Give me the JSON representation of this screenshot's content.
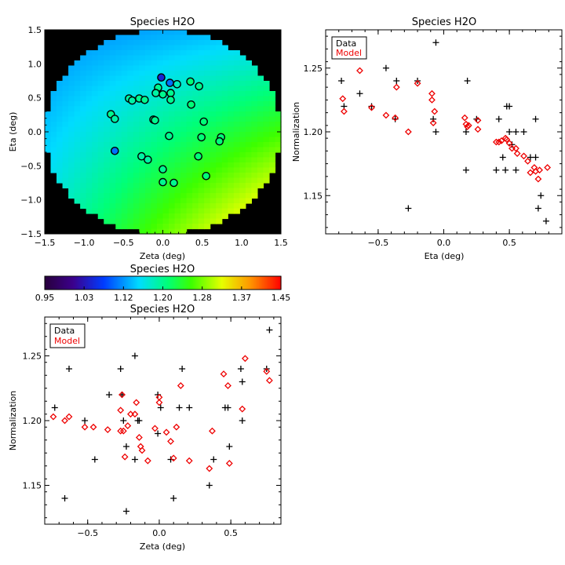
{
  "chart_data": [
    {
      "type": "heatmap",
      "title": "Species H2O",
      "xlabel": "Zeta (deg)",
      "ylabel": "Eta (deg)",
      "xlim": [
        -1.5,
        1.5
      ],
      "ylim": [
        -1.5,
        1.5
      ],
      "xticks": [
        "−1.5",
        "−1.0",
        "−0.5",
        "0.0",
        "0.5",
        "1.0",
        "1.5"
      ],
      "yticks": [
        "−1.5",
        "−1.0",
        "−0.5",
        "0.0",
        "0.5",
        "1.0",
        "1.5"
      ],
      "field": {
        "radius": 1.5,
        "center_value": 1.2,
        "dx_gradient": 0.04,
        "dy_gradient": 0.05
      },
      "points": [
        {
          "x": -0.02,
          "y": 0.8,
          "v": 1.05
        },
        {
          "x": 0.09,
          "y": 0.72,
          "v": 1.1
        },
        {
          "x": 0.18,
          "y": 0.7,
          "v": 1.18
        },
        {
          "x": 0.35,
          "y": 0.74,
          "v": 1.21
        },
        {
          "x": 0.46,
          "y": 0.67,
          "v": 1.2
        },
        {
          "x": -0.06,
          "y": 0.65,
          "v": 1.2
        },
        {
          "x": -0.09,
          "y": 0.57,
          "v": 1.19
        },
        {
          "x": 0.0,
          "y": 0.55,
          "v": 1.2
        },
        {
          "x": 0.1,
          "y": 0.57,
          "v": 1.2
        },
        {
          "x": -0.43,
          "y": 0.49,
          "v": 1.19
        },
        {
          "x": -0.39,
          "y": 0.46,
          "v": 1.19
        },
        {
          "x": -0.3,
          "y": 0.49,
          "v": 1.2
        },
        {
          "x": -0.23,
          "y": 0.47,
          "v": 1.2
        },
        {
          "x": 0.1,
          "y": 0.47,
          "v": 1.2
        },
        {
          "x": 0.36,
          "y": 0.4,
          "v": 1.21
        },
        {
          "x": -0.66,
          "y": 0.26,
          "v": 1.2
        },
        {
          "x": -0.61,
          "y": 0.19,
          "v": 1.19
        },
        {
          "x": -0.12,
          "y": 0.18,
          "v": 1.2
        },
        {
          "x": -0.1,
          "y": 0.17,
          "v": 1.2
        },
        {
          "x": 0.52,
          "y": 0.15,
          "v": 1.21
        },
        {
          "x": 0.08,
          "y": -0.06,
          "v": 1.2
        },
        {
          "x": 0.49,
          "y": -0.08,
          "v": 1.21
        },
        {
          "x": 0.74,
          "y": -0.08,
          "v": 1.21
        },
        {
          "x": 0.72,
          "y": -0.14,
          "v": 1.21
        },
        {
          "x": -0.61,
          "y": -0.28,
          "v": 1.1
        },
        {
          "x": -0.27,
          "y": -0.36,
          "v": 1.19
        },
        {
          "x": -0.19,
          "y": -0.41,
          "v": 1.19
        },
        {
          "x": 0.45,
          "y": -0.36,
          "v": 1.21
        },
        {
          "x": 0.0,
          "y": -0.55,
          "v": 1.2
        },
        {
          "x": 0.55,
          "y": -0.65,
          "v": 1.21
        },
        {
          "x": 0.0,
          "y": -0.74,
          "v": 1.2
        },
        {
          "x": 0.14,
          "y": -0.75,
          "v": 1.2
        }
      ]
    },
    {
      "type": "scatter",
      "title": "Species H2O",
      "xlabel": "Eta (deg)",
      "ylabel": "Normalization",
      "xlim": [
        -0.9,
        0.9
      ],
      "ylim": [
        1.12,
        1.28
      ],
      "xticks": [
        "−0.5",
        "0.0",
        "0.5"
      ],
      "yticks": [
        "1.15",
        "1.20",
        "1.25"
      ],
      "legend": {
        "location": "top-left",
        "entries": [
          "Data",
          "Model"
        ],
        "colors": [
          "#000000",
          "#ee0000"
        ]
      },
      "series": [
        {
          "name": "Data",
          "marker": "plus",
          "points": [
            [
              -0.78,
              1.24
            ],
            [
              -0.76,
              1.22
            ],
            [
              -0.64,
              1.23
            ],
            [
              -0.55,
              1.22
            ],
            [
              -0.44,
              1.25
            ],
            [
              -0.37,
              1.21
            ],
            [
              -0.36,
              1.24
            ],
            [
              -0.27,
              1.14
            ],
            [
              -0.2,
              1.24
            ],
            [
              -0.08,
              1.21
            ],
            [
              -0.06,
              1.2
            ],
            [
              -0.06,
              1.27
            ],
            [
              0.18,
              1.24
            ],
            [
              0.17,
              1.2
            ],
            [
              0.17,
              1.17
            ],
            [
              0.25,
              1.21
            ],
            [
              0.4,
              1.17
            ],
            [
              0.42,
              1.21
            ],
            [
              0.45,
              1.18
            ],
            [
              0.47,
              1.17
            ],
            [
              0.48,
              1.22
            ],
            [
              0.5,
              1.22
            ],
            [
              0.5,
              1.2
            ],
            [
              0.52,
              1.19
            ],
            [
              0.55,
              1.2
            ],
            [
              0.55,
              1.17
            ],
            [
              0.61,
              1.2
            ],
            [
              0.66,
              1.18
            ],
            [
              0.7,
              1.21
            ],
            [
              0.7,
              1.18
            ],
            [
              0.72,
              1.14
            ],
            [
              0.74,
              1.15
            ],
            [
              0.78,
              1.13
            ]
          ]
        },
        {
          "name": "Model",
          "marker": "diamond",
          "points": [
            [
              -0.77,
              1.226
            ],
            [
              -0.76,
              1.216
            ],
            [
              -0.64,
              1.248
            ],
            [
              -0.55,
              1.219
            ],
            [
              -0.44,
              1.213
            ],
            [
              -0.37,
              1.211
            ],
            [
              -0.36,
              1.235
            ],
            [
              -0.27,
              1.2
            ],
            [
              -0.2,
              1.238
            ],
            [
              -0.09,
              1.23
            ],
            [
              -0.09,
              1.225
            ],
            [
              -0.08,
              1.207
            ],
            [
              -0.07,
              1.216
            ],
            [
              0.16,
              1.211
            ],
            [
              0.17,
              1.206
            ],
            [
              0.18,
              1.204
            ],
            [
              0.19,
              1.205
            ],
            [
              0.26,
              1.202
            ],
            [
              0.26,
              1.209
            ],
            [
              0.4,
              1.192
            ],
            [
              0.42,
              1.192
            ],
            [
              0.44,
              1.193
            ],
            [
              0.47,
              1.195
            ],
            [
              0.48,
              1.194
            ],
            [
              0.5,
              1.191
            ],
            [
              0.52,
              1.187
            ],
            [
              0.55,
              1.187
            ],
            [
              0.56,
              1.183
            ],
            [
              0.61,
              1.181
            ],
            [
              0.64,
              1.177
            ],
            [
              0.66,
              1.168
            ],
            [
              0.69,
              1.172
            ],
            [
              0.7,
              1.169
            ],
            [
              0.72,
              1.163
            ],
            [
              0.73,
              1.17
            ],
            [
              0.79,
              1.172
            ]
          ]
        }
      ]
    },
    {
      "type": "colorbar",
      "title": "Species H2O",
      "range": [
        0.95,
        1.45
      ],
      "tick_labels": [
        "0.95",
        "1.03",
        "1.12",
        "1.20",
        "1.28",
        "1.37",
        "1.45"
      ],
      "colormap": "rainbow (purple-blue-cyan-green-yellow-red)"
    },
    {
      "type": "scatter",
      "title": "Species H2O",
      "xlabel": "Zeta (deg)",
      "ylabel": "Normalization",
      "xlim": [
        -0.8,
        0.85
      ],
      "ylim": [
        1.12,
        1.28
      ],
      "xticks": [
        "−0.5",
        "0.0",
        "0.5"
      ],
      "yticks": [
        "1.15",
        "1.20",
        "1.25"
      ],
      "legend": {
        "location": "top-left",
        "entries": [
          "Data",
          "Model"
        ],
        "colors": [
          "#000000",
          "#ee0000"
        ]
      },
      "series": [
        {
          "name": "Data",
          "marker": "plus",
          "points": [
            [
              -0.73,
              1.21
            ],
            [
              -0.66,
              1.14
            ],
            [
              -0.63,
              1.24
            ],
            [
              -0.52,
              1.2
            ],
            [
              -0.45,
              1.17
            ],
            [
              -0.35,
              1.22
            ],
            [
              -0.27,
              1.24
            ],
            [
              -0.26,
              1.22
            ],
            [
              -0.25,
              1.2
            ],
            [
              -0.23,
              1.13
            ],
            [
              -0.23,
              1.18
            ],
            [
              -0.17,
              1.25
            ],
            [
              -0.17,
              1.17
            ],
            [
              -0.15,
              1.2
            ],
            [
              -0.14,
              1.2
            ],
            [
              -0.01,
              1.22
            ],
            [
              -0.01,
              1.19
            ],
            [
              0.01,
              1.21
            ],
            [
              0.08,
              1.17
            ],
            [
              0.1,
              1.14
            ],
            [
              0.14,
              1.21
            ],
            [
              0.16,
              1.24
            ],
            [
              0.21,
              1.21
            ],
            [
              0.35,
              1.15
            ],
            [
              0.38,
              1.17
            ],
            [
              0.46,
              1.21
            ],
            [
              0.48,
              1.21
            ],
            [
              0.49,
              1.18
            ],
            [
              0.57,
              1.24
            ],
            [
              0.58,
              1.23
            ],
            [
              0.58,
              1.2
            ],
            [
              0.75,
              1.24
            ],
            [
              0.77,
              1.27
            ]
          ]
        },
        {
          "name": "Model",
          "marker": "diamond",
          "points": [
            [
              -0.74,
              1.203
            ],
            [
              -0.66,
              1.2
            ],
            [
              -0.63,
              1.203
            ],
            [
              -0.52,
              1.195
            ],
            [
              -0.46,
              1.195
            ],
            [
              -0.36,
              1.193
            ],
            [
              -0.27,
              1.192
            ],
            [
              -0.27,
              1.208
            ],
            [
              -0.26,
              1.22
            ],
            [
              -0.25,
              1.192
            ],
            [
              -0.24,
              1.172
            ],
            [
              -0.22,
              1.196
            ],
            [
              -0.2,
              1.205
            ],
            [
              -0.17,
              1.205
            ],
            [
              -0.16,
              1.214
            ],
            [
              -0.14,
              1.187
            ],
            [
              -0.13,
              1.18
            ],
            [
              -0.12,
              1.177
            ],
            [
              -0.08,
              1.169
            ],
            [
              -0.03,
              1.194
            ],
            [
              0.0,
              1.218
            ],
            [
              0.0,
              1.214
            ],
            [
              0.05,
              1.191
            ],
            [
              0.08,
              1.184
            ],
            [
              0.1,
              1.171
            ],
            [
              0.12,
              1.195
            ],
            [
              0.15,
              1.227
            ],
            [
              0.21,
              1.169
            ],
            [
              0.35,
              1.163
            ],
            [
              0.37,
              1.192
            ],
            [
              0.45,
              1.236
            ],
            [
              0.48,
              1.227
            ],
            [
              0.49,
              1.167
            ],
            [
              0.58,
              1.209
            ],
            [
              0.6,
              1.248
            ],
            [
              0.75,
              1.238
            ],
            [
              0.77,
              1.231
            ]
          ]
        }
      ]
    }
  ]
}
